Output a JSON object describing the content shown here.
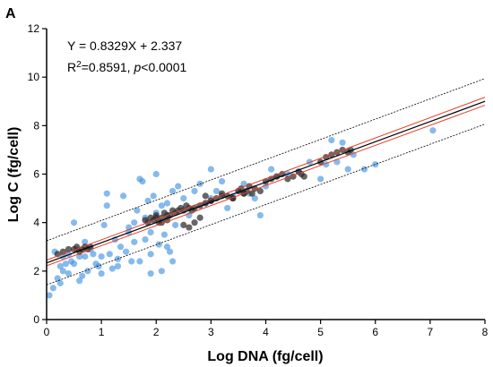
{
  "chart_data": {
    "type": "scatter",
    "panel_label": "A",
    "title": "",
    "xlabel": "Log DNA (fg/cell)",
    "ylabel": "Log C (fg/cell)",
    "xlim": [
      0,
      8
    ],
    "ylim": [
      0,
      12
    ],
    "x_ticks": [
      0,
      1,
      2,
      3,
      4,
      5,
      6,
      7,
      8
    ],
    "y_ticks": [
      0,
      2,
      4,
      6,
      8,
      10,
      12
    ],
    "x_tick_labels": [
      "0",
      "1",
      "2",
      "3",
      "4",
      "5",
      "6",
      "7",
      "8"
    ],
    "y_tick_labels": [
      "0",
      "2",
      "4",
      "6",
      "8",
      "10",
      "12"
    ],
    "grid": false,
    "annotations": {
      "equation": "Y = 0.8329X + 2.337",
      "r2_prefix": "R",
      "r2_sup": "2",
      "r2_value": "=0.8591, ",
      "p_symbol": "p",
      "p_value": "<0.0001"
    },
    "regression": {
      "slope": 0.8329,
      "intercept": 2.337,
      "color": "#000000"
    },
    "confidence_band": {
      "color": "#e8402a",
      "upper": [
        [
          0,
          2.45
        ],
        [
          8,
          9.17
        ]
      ],
      "lower": [
        [
          0,
          2.22
        ],
        [
          8,
          8.84
        ]
      ]
    },
    "prediction_band": {
      "color": "#000000",
      "upper": [
        [
          0,
          3.25
        ],
        [
          8,
          9.94
        ]
      ],
      "lower": [
        [
          0,
          1.43
        ],
        [
          8,
          8.06
        ]
      ]
    },
    "colors": {
      "blue": "#3d8fe0",
      "black": "#2b2b2b"
    },
    "series": [
      {
        "color_key": "blue",
        "x": [
          0.05,
          0.12,
          0.2,
          0.25,
          0.3,
          0.35,
          0.4,
          0.45,
          0.5,
          0.55,
          0.6,
          0.65,
          0.7,
          0.75,
          0.8,
          0.85,
          0.9,
          0.95,
          1.0,
          1.05,
          1.1,
          1.1,
          1.15,
          1.2,
          1.25,
          1.3,
          1.35,
          1.4,
          1.45,
          1.5,
          1.55,
          1.6,
          1.65,
          1.7,
          1.7,
          1.75,
          1.8,
          1.8,
          1.85,
          1.9,
          1.9,
          1.95,
          2.0,
          2.0,
          2.05,
          2.1,
          2.1,
          2.15,
          2.2,
          2.25,
          2.3,
          2.35,
          2.4,
          2.5,
          2.6,
          2.7,
          2.8,
          2.9,
          3.0,
          3.0,
          3.1,
          3.2,
          3.3,
          3.4,
          3.5,
          3.6,
          3.7,
          3.8,
          3.9,
          4.0,
          4.1,
          4.2,
          4.4,
          4.6,
          4.8,
          5.0,
          5.1,
          5.2,
          5.3,
          5.4,
          5.5,
          5.6,
          5.8,
          6.0,
          7.05,
          0.5,
          0.6,
          0.7,
          0.3,
          0.4,
          1.5,
          1.6,
          1.3,
          2.2,
          1.9,
          2.3,
          0.15,
          0.25,
          1.0
        ],
        "y": [
          1.0,
          1.3,
          1.7,
          2.2,
          2.6,
          2.3,
          1.9,
          2.4,
          4.0,
          2.9,
          2.6,
          1.8,
          3.2,
          2.0,
          2.9,
          2.7,
          2.3,
          2.2,
          2.6,
          3.9,
          5.2,
          4.7,
          2.7,
          2.1,
          3.3,
          2.5,
          3.0,
          5.1,
          2.8,
          3.8,
          2.4,
          4.0,
          4.5,
          5.8,
          2.4,
          5.7,
          3.3,
          4.2,
          4.9,
          3.6,
          2.7,
          5.1,
          6.0,
          4.4,
          3.1,
          4.7,
          2.0,
          3.5,
          4.8,
          2.8,
          5.3,
          3.9,
          5.5,
          5.0,
          4.3,
          5.3,
          5.6,
          4.8,
          6.2,
          5.0,
          5.3,
          5.7,
          4.6,
          5.1,
          5.3,
          5.6,
          5.2,
          5.0,
          4.3,
          5.5,
          6.2,
          5.9,
          6.0,
          6.1,
          6.5,
          5.8,
          6.4,
          7.4,
          6.5,
          7.3,
          6.2,
          6.8,
          6.2,
          6.4,
          7.8,
          2.3,
          1.6,
          2.6,
          2.0,
          2.7,
          3.6,
          3.2,
          2.2,
          3.0,
          1.9,
          2.4,
          2.8,
          1.5,
          1.9
        ]
      },
      {
        "color_key": "black",
        "x": [
          0.2,
          0.3,
          0.4,
          0.5,
          0.55,
          0.6,
          0.65,
          0.7,
          0.75,
          0.8,
          1.8,
          1.85,
          1.9,
          1.95,
          2.0,
          2.05,
          2.1,
          2.15,
          2.2,
          2.25,
          2.3,
          2.35,
          2.4,
          2.45,
          2.5,
          2.55,
          2.6,
          2.65,
          2.7,
          2.5,
          2.6,
          2.7,
          2.8,
          2.9,
          3.0,
          3.1,
          3.2,
          3.3,
          3.4,
          3.5,
          3.55,
          3.6,
          3.65,
          3.7,
          3.75,
          3.8,
          3.9,
          4.0,
          4.1,
          4.2,
          4.3,
          4.4,
          4.5,
          4.6,
          4.65,
          4.7,
          5.0,
          5.1,
          5.2,
          5.3,
          5.4,
          5.5,
          5.55,
          3.2,
          3.4,
          3.6,
          3.0,
          2.9,
          2.8,
          2.0,
          2.1,
          2.2
        ],
        "y": [
          2.7,
          2.8,
          2.9,
          2.9,
          3.0,
          2.8,
          2.9,
          3.0,
          2.9,
          3.0,
          4.1,
          4.0,
          4.2,
          4.1,
          4.3,
          4.0,
          4.2,
          4.4,
          4.1,
          4.3,
          4.5,
          4.4,
          4.5,
          4.6,
          4.5,
          4.7,
          4.6,
          4.5,
          4.6,
          3.9,
          3.8,
          4.0,
          4.2,
          4.8,
          4.9,
          5.0,
          5.2,
          5.1,
          5.0,
          5.3,
          5.4,
          5.2,
          5.3,
          5.5,
          5.2,
          5.4,
          5.3,
          5.7,
          5.8,
          5.9,
          6.0,
          5.8,
          5.9,
          6.1,
          6.0,
          5.9,
          6.5,
          6.7,
          6.8,
          6.9,
          7.0,
          6.9,
          7.0,
          5.1,
          5.0,
          5.2,
          4.9,
          5.1,
          4.7,
          4.2,
          4.0,
          4.3
        ]
      }
    ]
  }
}
